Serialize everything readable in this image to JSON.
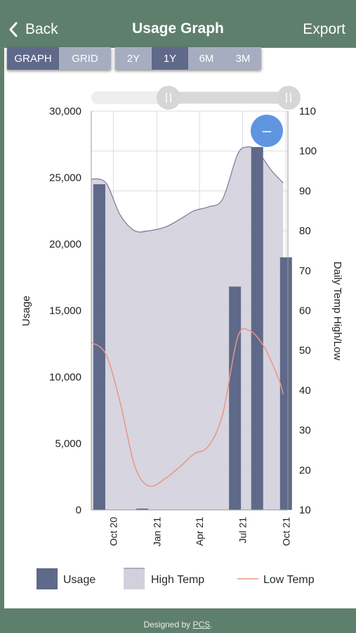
{
  "nav": {
    "back_label": "Back",
    "title": "Usage Graph",
    "export_label": "Export"
  },
  "view_toggle": {
    "options": [
      "GRAPH",
      "GRID"
    ],
    "selected": "GRAPH"
  },
  "range_toggle": {
    "options": [
      "2Y",
      "1Y",
      "6M",
      "3M"
    ],
    "selected": "1Y"
  },
  "zoom_button_glyph": "–",
  "colors": {
    "nav_bg": "#5f7f6d",
    "usage": "#5f6989",
    "high_temp_fill": "#d3d0dd",
    "high_temp_line": "#7b7799",
    "low_temp": "#ea9683",
    "zoom_button": "#5f95e0"
  },
  "chart_data": {
    "type": "bar",
    "x_axis": {
      "ticks": [
        "Oct 20",
        "Jan 21",
        "Apr 21",
        "Jul 21",
        "Oct 21"
      ]
    },
    "y_left": {
      "label": "Usage",
      "range": [
        0,
        30000
      ],
      "ticks": [
        "0",
        "5,000",
        "10,000",
        "15,000",
        "20,000",
        "25,000",
        "30,000"
      ]
    },
    "y_right": {
      "label": "Daily Temp High/Low",
      "range": [
        10,
        110
      ],
      "ticks": [
        "10",
        "20",
        "30",
        "40",
        "50",
        "60",
        "70",
        "80",
        "90",
        "100",
        "110"
      ]
    },
    "grid": true,
    "series": [
      {
        "name": "Usage",
        "type": "bar",
        "axis": "left",
        "points": [
          {
            "date": "2020-09-01",
            "value": 24500
          },
          {
            "date": "2020-12-01",
            "value": 100
          },
          {
            "date": "2021-06-15",
            "value": 16800
          },
          {
            "date": "2021-08-01",
            "value": 27300
          },
          {
            "date": "2021-10-01",
            "value": 19000
          }
        ]
      },
      {
        "name": "High Temp",
        "type": "area",
        "axis": "right",
        "points": [
          {
            "date": "2020-08-15",
            "value": 93
          },
          {
            "date": "2020-09-15",
            "value": 92
          },
          {
            "date": "2020-10-15",
            "value": 84
          },
          {
            "date": "2020-11-15",
            "value": 80
          },
          {
            "date": "2020-12-15",
            "value": 80
          },
          {
            "date": "2021-01-20",
            "value": 81
          },
          {
            "date": "2021-02-20",
            "value": 83
          },
          {
            "date": "2021-03-20",
            "value": 85
          },
          {
            "date": "2021-04-20",
            "value": 86
          },
          {
            "date": "2021-05-20",
            "value": 88
          },
          {
            "date": "2021-06-20",
            "value": 99
          },
          {
            "date": "2021-07-10",
            "value": 101
          },
          {
            "date": "2021-08-01",
            "value": 100
          },
          {
            "date": "2021-09-01",
            "value": 95
          },
          {
            "date": "2021-09-25",
            "value": 92
          }
        ]
      },
      {
        "name": "Low Temp",
        "type": "line",
        "axis": "right",
        "points": [
          {
            "date": "2020-08-15",
            "value": 52
          },
          {
            "date": "2020-09-15",
            "value": 49
          },
          {
            "date": "2020-10-15",
            "value": 37
          },
          {
            "date": "2020-11-15",
            "value": 21
          },
          {
            "date": "2020-12-15",
            "value": 16
          },
          {
            "date": "2021-01-20",
            "value": 18
          },
          {
            "date": "2021-02-20",
            "value": 21
          },
          {
            "date": "2021-03-20",
            "value": 24
          },
          {
            "date": "2021-04-20",
            "value": 26
          },
          {
            "date": "2021-05-20",
            "value": 34
          },
          {
            "date": "2021-06-20",
            "value": 53
          },
          {
            "date": "2021-07-15",
            "value": 55
          },
          {
            "date": "2021-08-15",
            "value": 51
          },
          {
            "date": "2021-09-15",
            "value": 43
          },
          {
            "date": "2021-09-25",
            "value": 39
          }
        ]
      }
    ],
    "legend": {
      "position": "bottom",
      "items": [
        "Usage",
        "High Temp",
        "Low Temp"
      ]
    }
  },
  "footer": {
    "prefix": "Designed by ",
    "link": "PCS",
    "suffix": "."
  }
}
